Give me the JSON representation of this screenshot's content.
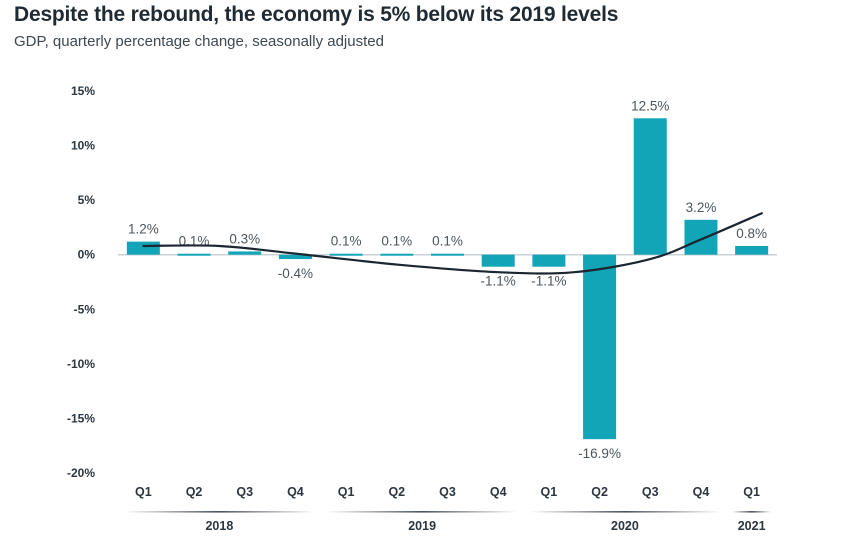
{
  "header": {
    "title": "Despite the rebound, the economy is 5% below its 2019 levels",
    "subtitle": "GDP, quarterly percentage change, seasonally adjusted"
  },
  "colors": {
    "bar": "#12a5b8",
    "trend_line": "#1b2631",
    "zero_line": "#c9d2d6",
    "text": "#2b3640"
  },
  "chart_data": {
    "type": "bar",
    "title": "Despite the rebound, the economy is 5% below its 2019 levels",
    "subtitle": "GDP, quarterly percentage change, seasonally adjusted",
    "xlabel": "",
    "ylabel": "",
    "categories": [
      "Q1",
      "Q2",
      "Q3",
      "Q4",
      "Q1",
      "Q2",
      "Q3",
      "Q4",
      "Q1",
      "Q2",
      "Q3",
      "Q4",
      "Q1"
    ],
    "values": [
      1.2,
      0.1,
      0.3,
      -0.4,
      0.1,
      0.1,
      0.1,
      -1.1,
      -1.1,
      -16.9,
      12.5,
      3.2,
      0.8
    ],
    "data_labels": [
      "1.2%",
      "0.1%",
      "0.3%",
      "-0.4%",
      "0.1%",
      "0.1%",
      "0.1%",
      "-1.1%",
      "-1.1%",
      "-16.9%",
      "12.5%",
      "3.2%",
      "0.8%"
    ],
    "year_groups": [
      {
        "label": "2018",
        "start": 0,
        "end": 3
      },
      {
        "label": "2019",
        "start": 4,
        "end": 7
      },
      {
        "label": "2020",
        "start": 8,
        "end": 11
      },
      {
        "label": "2021",
        "start": 12,
        "end": 12
      }
    ],
    "ylim": [
      -20,
      15
    ],
    "yticks": [
      15,
      10,
      5,
      0,
      -5,
      -10,
      -15,
      -20
    ],
    "ytick_labels": [
      "15%",
      "10%",
      "5%",
      "0%",
      "-5%",
      "-10%",
      "-15%",
      "-20%"
    ],
    "trend_line": {
      "type": "smooth",
      "points": [
        {
          "x": 0,
          "y": 0.8
        },
        {
          "x": 1.5,
          "y": 0.8
        },
        {
          "x": 3,
          "y": 0.1
        },
        {
          "x": 5,
          "y": -0.9
        },
        {
          "x": 7,
          "y": -1.6
        },
        {
          "x": 8.5,
          "y": -1.6
        },
        {
          "x": 10,
          "y": -0.4
        },
        {
          "x": 11,
          "y": 1.4
        },
        {
          "x": 12.2,
          "y": 3.8
        }
      ]
    },
    "grid": false,
    "legend": "none"
  }
}
